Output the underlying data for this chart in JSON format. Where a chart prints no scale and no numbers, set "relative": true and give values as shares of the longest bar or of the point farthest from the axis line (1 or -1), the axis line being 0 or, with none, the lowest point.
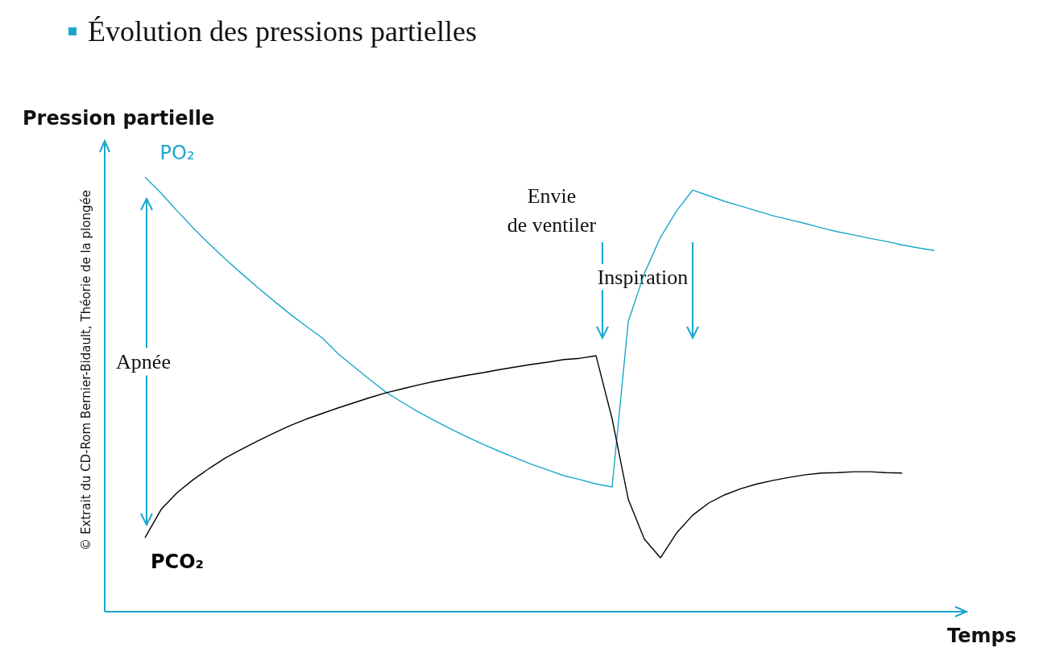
{
  "chart_data": {
    "type": "line",
    "title": "Évolution des pressions partielles",
    "ylabel": "Pression partielle",
    "xlabel": "Temps",
    "relative": true,
    "marker": "none",
    "annotations": [
      "Apnée",
      "Envie de ventiler",
      "Inspiration",
      "© Extrait du CD-Rom Bernier-Bidault, Théorie de la plongée"
    ],
    "categories": [
      null,
      null,
      null,
      null,
      null,
      null,
      null,
      null,
      null,
      null,
      null,
      null,
      null,
      null,
      null,
      null,
      null,
      null,
      null,
      null,
      null,
      null,
      null,
      null,
      null,
      null,
      null,
      null,
      null,
      null,
      null,
      null,
      null,
      null,
      null,
      null,
      null,
      null,
      null,
      null,
      null,
      null,
      null,
      null,
      null,
      null,
      null,
      null,
      null,
      null
    ],
    "series": [
      {
        "name": "PO₂",
        "color": "#1aa7c9",
        "values": [
          1,
          0.963,
          0.922,
          0.883,
          0.846,
          0.811,
          0.778,
          0.746,
          0.715,
          0.685,
          0.657,
          0.63,
          0.593,
          0.563,
          0.533,
          0.504,
          0.481,
          0.459,
          0.439,
          0.42,
          0.402,
          0.385,
          0.369,
          0.354,
          0.339,
          0.326,
          0.313,
          0.304,
          0.294,
          0.287,
          0.667,
          0.778,
          0.861,
          0.922,
          0.97,
          0.957,
          0.944,
          0.933,
          0.922,
          0.911,
          0.902,
          0.893,
          0.883,
          0.874,
          0.867,
          0.859,
          0.852,
          0.844,
          0.837,
          0.831
        ]
      },
      {
        "name": "PCO₂",
        "color": "#000000",
        "values": [
          0.17,
          0.235,
          0.274,
          0.304,
          0.33,
          0.354,
          0.374,
          0.393,
          0.411,
          0.428,
          0.443,
          0.456,
          0.469,
          0.481,
          0.493,
          0.504,
          0.513,
          0.522,
          0.53,
          0.537,
          0.544,
          0.55,
          0.557,
          0.563,
          0.569,
          0.574,
          0.58,
          0.583,
          0.589,
          0.444,
          0.259,
          0.167,
          0.124,
          0.181,
          0.222,
          0.25,
          0.269,
          0.283,
          0.294,
          0.302,
          0.309,
          0.315,
          0.319,
          0.32,
          0.322,
          0.322,
          0.32,
          0.319,
          null,
          null
        ]
      }
    ]
  }
}
